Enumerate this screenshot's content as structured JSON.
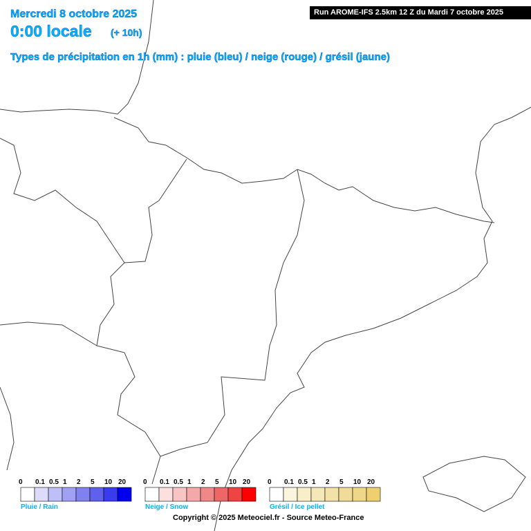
{
  "header": {
    "date": "Mercredi 8 octobre 2025",
    "time": "0:00 locale",
    "offset": "(+ 10h)",
    "subtitle": "Types de précipitation en 1h (mm) : pluie (bleu) / neige (rouge) / grésil (jaune)",
    "run": "Run AROME-IFS 2.5km 12 Z du Mardi 7 octobre 2025"
  },
  "legend": {
    "ticks": [
      "0",
      "0.1",
      "0.5",
      "1",
      "2",
      "5",
      "10",
      "20"
    ],
    "groups": [
      {
        "name": "Pluie / Rain",
        "colors": [
          "#ffffff",
          "#dcdcfa",
          "#bebef8",
          "#a0a0f5",
          "#8080f0",
          "#6060ee",
          "#3a3aee",
          "#0000ee"
        ]
      },
      {
        "name": "Neige / Snow",
        "colors": [
          "#ffffff",
          "#fce0e0",
          "#f8c4c4",
          "#f4a8a8",
          "#f08888",
          "#ee6666",
          "#ee4444",
          "#ff0000"
        ]
      },
      {
        "name": "Grésil / Ice pellet",
        "colors": [
          "#ffffff",
          "#fbf5e0",
          "#f8eec8",
          "#f5e8b8",
          "#f2e2a8",
          "#f0dc98",
          "#eed888",
          "#eed070"
        ]
      }
    ]
  },
  "footer": {
    "copyright": "Copyright © 2025 Meteociel.fr - Source Meteo-France"
  }
}
